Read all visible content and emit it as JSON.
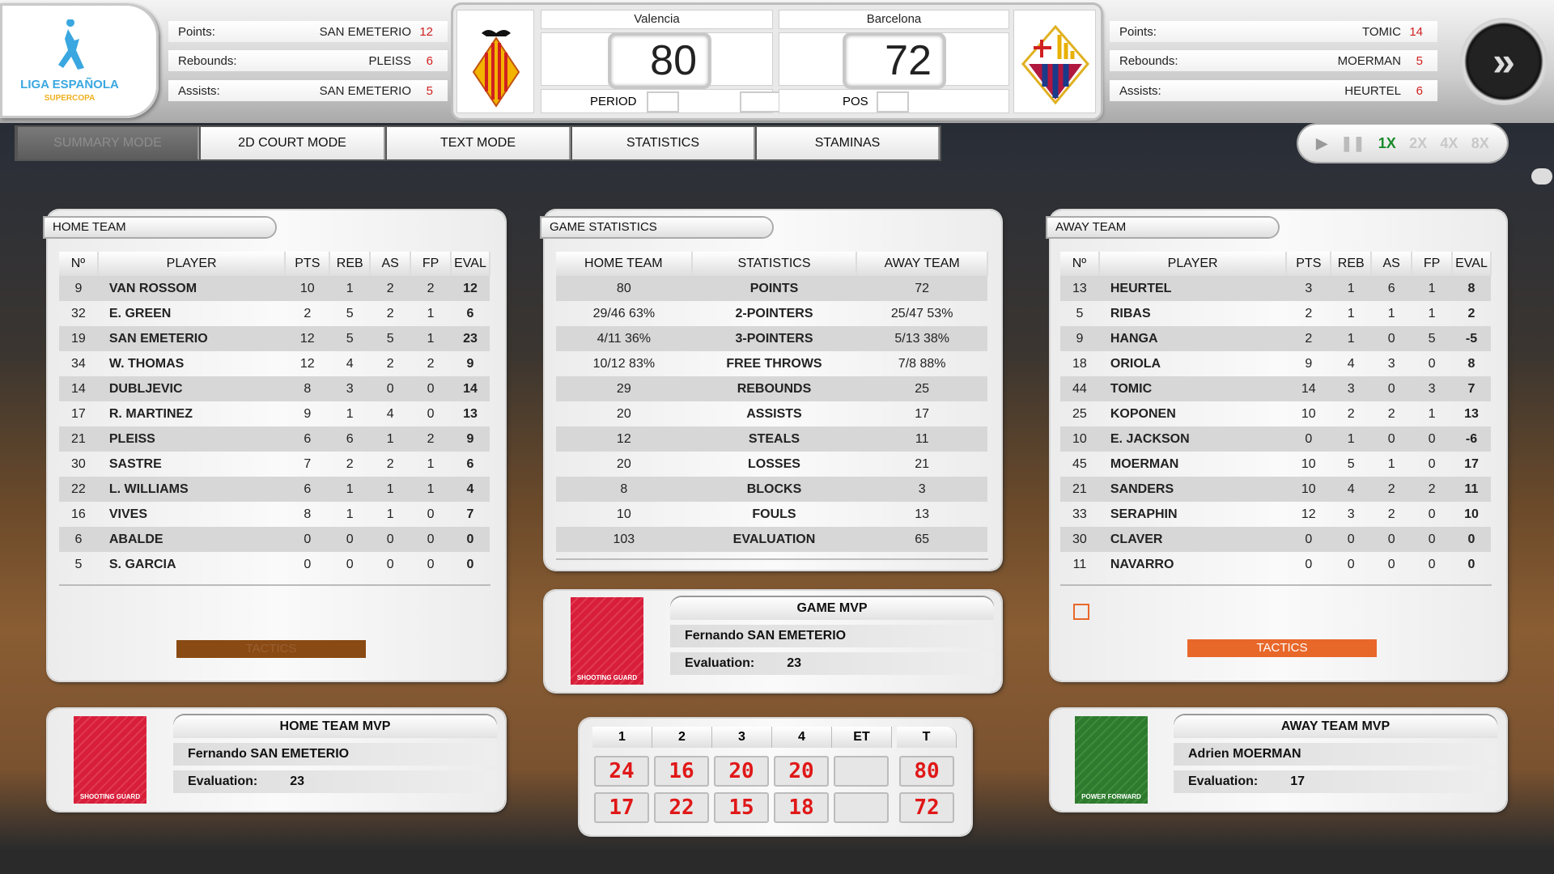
{
  "logo": {
    "line1": "LIGA ESPAÑOLA",
    "line2": "SUPERCOPA"
  },
  "home_leaders": [
    {
      "label": "Points:",
      "player": "SAN EMETERIO",
      "value": "12"
    },
    {
      "label": "Rebounds:",
      "player": "PLEISS",
      "value": "6"
    },
    {
      "label": "Assists:",
      "player": "SAN EMETERIO",
      "value": "5"
    }
  ],
  "away_leaders": [
    {
      "label": "Points:",
      "player": "TOMIC",
      "value": "14"
    },
    {
      "label": "Rebounds:",
      "player": "MOERMAN",
      "value": "5"
    },
    {
      "label": "Assists:",
      "player": "HEURTEL",
      "value": "6"
    }
  ],
  "scoreboard": {
    "home_name": "Valencia",
    "home_score": "80",
    "away_name": "Barcelona",
    "away_score": "72",
    "period_label": "PERIOD",
    "pos_label": "POS"
  },
  "tabs": [
    "SUMMARY MODE",
    "2D COURT MODE",
    "TEXT MODE",
    "STATISTICS",
    "STAMINAS"
  ],
  "active_tab": "SUMMARY MODE",
  "playback": {
    "speeds": [
      "1X",
      "2X",
      "4X",
      "8X"
    ],
    "active_speed": "1X"
  },
  "colors": {
    "active_speed": "#1a8a2a",
    "tactics": "#e8682a",
    "tactics_disabled": "#8a4a14",
    "led": "#e01818"
  },
  "home_team": {
    "title": "HOME TEAM",
    "tactics": "TACTICS",
    "columns": [
      "Nº",
      "PLAYER",
      "PTS",
      "REB",
      "AS",
      "FP",
      "EVAL"
    ],
    "rows": [
      [
        "9",
        "VAN ROSSOM",
        "10",
        "1",
        "2",
        "2",
        "12"
      ],
      [
        "32",
        "E. GREEN",
        "2",
        "5",
        "2",
        "1",
        "6"
      ],
      [
        "19",
        "SAN EMETERIO",
        "12",
        "5",
        "5",
        "1",
        "23"
      ],
      [
        "34",
        "W. THOMAS",
        "12",
        "4",
        "2",
        "2",
        "9"
      ],
      [
        "14",
        "DUBLJEVIC",
        "8",
        "3",
        "0",
        "0",
        "14"
      ],
      [
        "17",
        "R. MARTINEZ",
        "9",
        "1",
        "4",
        "0",
        "13"
      ],
      [
        "21",
        "PLEISS",
        "6",
        "6",
        "1",
        "2",
        "9"
      ],
      [
        "30",
        "SASTRE",
        "7",
        "2",
        "2",
        "1",
        "6"
      ],
      [
        "22",
        "L. WILLIAMS",
        "6",
        "1",
        "1",
        "1",
        "4"
      ],
      [
        "16",
        "VIVES",
        "8",
        "1",
        "1",
        "0",
        "7"
      ],
      [
        "6",
        "ABALDE",
        "0",
        "0",
        "0",
        "0",
        "0"
      ],
      [
        "5",
        "S. GARCIA",
        "0",
        "0",
        "0",
        "0",
        "0"
      ]
    ]
  },
  "away_team": {
    "title": "AWAY TEAM",
    "tactics": "TACTICS",
    "columns": [
      "Nº",
      "PLAYER",
      "PTS",
      "REB",
      "AS",
      "FP",
      "EVAL"
    ],
    "rows": [
      [
        "13",
        "HEURTEL",
        "3",
        "1",
        "6",
        "1",
        "8"
      ],
      [
        "5",
        "RIBAS",
        "2",
        "1",
        "1",
        "1",
        "2"
      ],
      [
        "9",
        "HANGA",
        "2",
        "1",
        "0",
        "5",
        "-5"
      ],
      [
        "18",
        "ORIOLA",
        "9",
        "4",
        "3",
        "0",
        "8"
      ],
      [
        "44",
        "TOMIC",
        "14",
        "3",
        "0",
        "3",
        "7"
      ],
      [
        "25",
        "KOPONEN",
        "10",
        "2",
        "2",
        "1",
        "13"
      ],
      [
        "10",
        "E. JACKSON",
        "0",
        "1",
        "0",
        "0",
        "-6"
      ],
      [
        "45",
        "MOERMAN",
        "10",
        "5",
        "1",
        "0",
        "17"
      ],
      [
        "21",
        "SANDERS",
        "10",
        "4",
        "2",
        "2",
        "11"
      ],
      [
        "33",
        "SERAPHIN",
        "12",
        "3",
        "2",
        "0",
        "10"
      ],
      [
        "30",
        "CLAVER",
        "0",
        "0",
        "0",
        "0",
        "0"
      ],
      [
        "11",
        "NAVARRO",
        "0",
        "0",
        "0",
        "0",
        "0"
      ]
    ]
  },
  "game_stats": {
    "title": "GAME STATISTICS",
    "columns": [
      "HOME TEAM",
      "STATISTICS",
      "AWAY TEAM"
    ],
    "rows": [
      [
        "80",
        "POINTS",
        "72"
      ],
      [
        "29/46 63%",
        "2-POINTERS",
        "25/47 53%"
      ],
      [
        "4/11 36%",
        "3-POINTERS",
        "5/13 38%"
      ],
      [
        "10/12 83%",
        "FREE THROWS",
        "7/8 88%"
      ],
      [
        "29",
        "REBOUNDS",
        "25"
      ],
      [
        "20",
        "ASSISTS",
        "17"
      ],
      [
        "12",
        "STEALS",
        "11"
      ],
      [
        "20",
        "LOSSES",
        "21"
      ],
      [
        "8",
        "BLOCKS",
        "3"
      ],
      [
        "10",
        "FOULS",
        "13"
      ],
      [
        "103",
        "EVALUATION",
        "65"
      ]
    ]
  },
  "game_mvp": {
    "title": "GAME MVP",
    "name": "Fernando SAN EMETERIO",
    "eval_label": "Evaluation:",
    "eval": "23",
    "position": "SHOOTING GUARD"
  },
  "home_mvp": {
    "title": "HOME TEAM MVP",
    "name": "Fernando SAN EMETERIO",
    "eval_label": "Evaluation:",
    "eval": "23",
    "position": "SHOOTING GUARD"
  },
  "away_mvp": {
    "title": "AWAY TEAM MVP",
    "name": "Adrien MOERMAN",
    "eval_label": "Evaluation:",
    "eval": "17",
    "position": "POWER FORWARD"
  },
  "quarters": {
    "headers": [
      "1",
      "2",
      "3",
      "4",
      "ET",
      "T"
    ],
    "home": [
      "24",
      "16",
      "20",
      "20",
      "",
      "80"
    ],
    "away": [
      "17",
      "22",
      "15",
      "18",
      "",
      "72"
    ]
  }
}
